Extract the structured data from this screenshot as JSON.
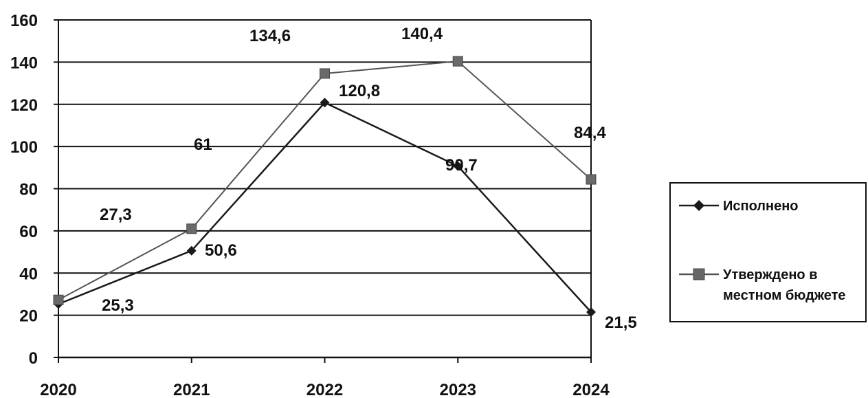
{
  "chart_data": {
    "type": "line",
    "categories": [
      "2020",
      "2021",
      "2022",
      "2023",
      "2024"
    ],
    "series": [
      {
        "name": "Исполнено",
        "values": [
          25.3,
          50.6,
          120.8,
          90.7,
          21.5
        ],
        "labels": [
          "25,3",
          "50,6",
          "120,8",
          "90,7",
          "21,5"
        ],
        "color": "#1a1a1a",
        "marker": "diamond"
      },
      {
        "name": "Утверждено в местном бюджете",
        "values": [
          27.3,
          61,
          134.6,
          140.4,
          84.4
        ],
        "labels": [
          "27,3",
          "61",
          "134,6",
          "140,4",
          "84,4"
        ],
        "color": "#555555",
        "marker": "square"
      }
    ],
    "yticks": [
      "0",
      "20",
      "40",
      "60",
      "80",
      "100",
      "120",
      "140",
      "160"
    ],
    "ylim": [
      0,
      160
    ],
    "grid": true,
    "legend": "right",
    "title": "",
    "xlabel": "",
    "ylabel": ""
  },
  "legend": {
    "item_1_label": "Исполнено",
    "item_2_line1": "Утверждено в",
    "item_2_line2": "местном бюджете"
  }
}
